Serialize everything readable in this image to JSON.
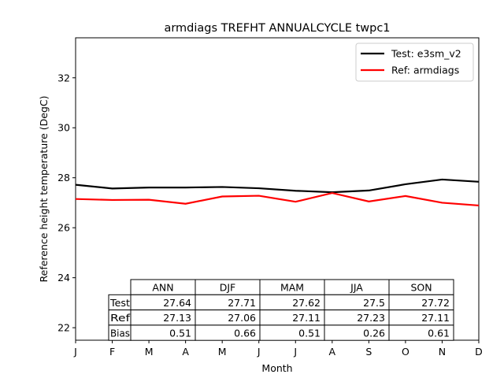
{
  "chart_data": {
    "type": "line",
    "title": "armdiags TREFHT ANNUALCYCLE twpc1",
    "xlabel": "Month",
    "ylabel": "Reference height temperature (DegC)",
    "categories": [
      "J",
      "F",
      "M",
      "A",
      "M",
      "J",
      "J",
      "A",
      "S",
      "O",
      "N",
      "D"
    ],
    "xlim": [
      0,
      11
    ],
    "ylim": [
      21.5,
      33.6
    ],
    "yticks": [
      22,
      24,
      26,
      28,
      30,
      32
    ],
    "grid": false,
    "legend_position": "top-right",
    "series": [
      {
        "name": "Test: e3sm_v2",
        "color": "#000000",
        "values": [
          27.72,
          27.57,
          27.61,
          27.61,
          27.63,
          27.58,
          27.48,
          27.42,
          27.49,
          27.74,
          27.93,
          27.84
        ]
      },
      {
        "name": "Ref: armdiags",
        "color": "#ff0000",
        "values": [
          27.15,
          27.11,
          27.12,
          26.96,
          27.25,
          27.28,
          27.04,
          27.39,
          27.05,
          27.27,
          27.0,
          26.89
        ]
      }
    ],
    "table": {
      "columns": [
        "ANN",
        "DJF",
        "MAM",
        "JJA",
        "SON"
      ],
      "rows": [
        {
          "label": "Test",
          "values": [
            "27.64",
            "27.71",
            "27.62",
            "27.5",
            "27.72"
          ]
        },
        {
          "label": "Ref",
          "values": [
            "27.13",
            "27.06",
            "27.11",
            "27.23",
            "27.11"
          ]
        },
        {
          "label": "Bias",
          "values": [
            "0.51",
            "0.66",
            "0.51",
            "0.26",
            "0.61"
          ]
        }
      ]
    }
  }
}
